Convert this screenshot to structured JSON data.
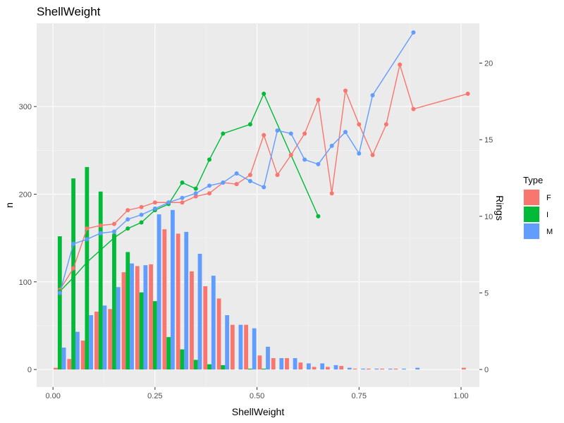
{
  "chart_data": {
    "type": "bar",
    "title": "ShellWeight",
    "xlabel": "ShellWeight",
    "ylabel": "n",
    "y2label": "Rings",
    "xlim": [
      -0.04,
      1.045
    ],
    "ylim": [
      -20,
      395
    ],
    "y2lim": [
      -1.146,
      22.6
    ],
    "x_ticks": [
      0,
      0.25,
      0.5,
      0.75,
      1.0
    ],
    "x_tick_labels": [
      "0.00",
      "0.25",
      "0.50",
      "0.75",
      "1.00"
    ],
    "y_ticks": [
      0,
      100,
      200,
      300
    ],
    "y_tick_labels": [
      "0",
      "100",
      "200",
      "300"
    ],
    "y2_ticks": [
      0,
      5,
      10,
      15,
      20
    ],
    "y2_tick_labels": [
      "0",
      "5",
      "10",
      "15",
      "20"
    ],
    "grid": true,
    "legend": {
      "title": "Type",
      "position": "right"
    },
    "bin_width": 0.0333,
    "bin_centers": [
      0.0167,
      0.05,
      0.0833,
      0.1167,
      0.15,
      0.1833,
      0.2167,
      0.25,
      0.2833,
      0.3167,
      0.35,
      0.3833,
      0.4167,
      0.45,
      0.4833,
      0.5167,
      0.55,
      0.5833,
      0.6167,
      0.65,
      0.6833,
      0.7167,
      0.75,
      0.7833,
      0.8167,
      0.85,
      0.8833,
      0.9167,
      0.95,
      0.9833,
      1.0167
    ],
    "series": [
      {
        "name": "F",
        "color": "#F8766D",
        "counts": [
          2,
          12,
          33,
          66,
          69,
          111,
          118,
          120,
          160,
          155,
          112,
          95,
          81,
          51,
          51,
          16,
          13,
          13,
          8,
          3,
          3,
          4,
          1,
          1,
          1,
          1,
          0,
          0,
          0,
          0,
          2
        ],
        "line_x": [
          0.0167,
          0.05,
          0.0833,
          0.1167,
          0.15,
          0.1833,
          0.2167,
          0.25,
          0.2833,
          0.3167,
          0.35,
          0.3833,
          0.4167,
          0.45,
          0.4833,
          0.5167,
          0.55,
          0.5833,
          0.6167,
          0.65,
          0.6833,
          0.7167,
          0.75,
          0.7833,
          0.8167,
          0.85,
          0.8833,
          1.0167
        ],
        "line_y": [
          5.2,
          6.6,
          9.2,
          9.4,
          9.5,
          10.4,
          10.6,
          10.9,
          10.9,
          10.9,
          11.3,
          11.5,
          12.2,
          12.1,
          12.7,
          15.3,
          12.7,
          14.0,
          15.4,
          17.6,
          11.5,
          18.2,
          16.0,
          14.0,
          16.0,
          19.9,
          17.0,
          18.0
        ]
      },
      {
        "name": "I",
        "color": "#00BA38",
        "counts": [
          152,
          218,
          231,
          203,
          155,
          134,
          88,
          78,
          37,
          23,
          11,
          6,
          5,
          0,
          1,
          1,
          0,
          0,
          0,
          0,
          0,
          0,
          0,
          0,
          0,
          0,
          0,
          0,
          0,
          0,
          0
        ],
        "line_x": [
          0.0167,
          0.05,
          0.0833,
          0.1167,
          0.15,
          0.1833,
          0.2167,
          0.25,
          0.2833,
          0.3167,
          0.35,
          0.3833,
          0.4167,
          0.4833,
          0.5167,
          0.65
        ],
        "line_y": [
          5.1,
          6.0,
          7.0,
          7.8,
          8.6,
          9.2,
          9.6,
          10.4,
          10.8,
          12.2,
          11.8,
          13.7,
          15.4,
          16.0,
          18.0,
          10.0
        ]
      },
      {
        "name": "M",
        "color": "#619CFF",
        "counts": [
          25,
          43,
          62,
          73,
          94,
          121,
          119,
          177,
          182,
          157,
          132,
          107,
          62,
          51,
          47,
          26,
          13,
          13,
          7,
          7,
          5,
          2,
          1,
          1,
          1,
          1,
          2,
          0,
          0,
          0,
          0
        ],
        "line_x": [
          0.0167,
          0.05,
          0.0833,
          0.1167,
          0.15,
          0.1833,
          0.2167,
          0.25,
          0.2833,
          0.3167,
          0.35,
          0.3833,
          0.4167,
          0.45,
          0.4833,
          0.5167,
          0.55,
          0.5833,
          0.6167,
          0.65,
          0.6833,
          0.7167,
          0.75,
          0.7833,
          0.8833
        ],
        "line_y": [
          5.0,
          8.2,
          8.5,
          8.9,
          9.0,
          9.8,
          10.1,
          10.5,
          10.9,
          11.2,
          11.5,
          12.0,
          12.2,
          12.8,
          12.3,
          11.9,
          15.6,
          15.4,
          13.7,
          13.4,
          14.6,
          15.5,
          14.1,
          17.9,
          22.0
        ]
      }
    ]
  }
}
